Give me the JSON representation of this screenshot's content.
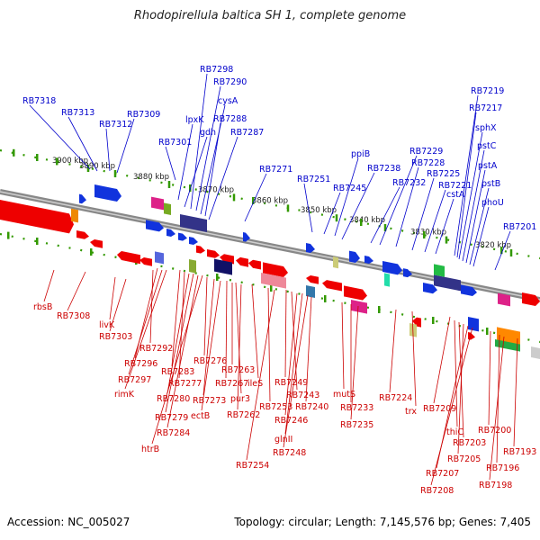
{
  "title": "Rhodopirellula baltica SH 1, complete genome",
  "footer": {
    "accession": "Accession: NC_005027",
    "info": "Topology: circular; Length: 7,145,576 bp; Genes: 7,405"
  },
  "colors": {
    "top_label": "#0000cc",
    "bottom_label": "#cc0000",
    "tick": "#339900",
    "backbone": "#888888"
  },
  "ticks": [
    {
      "label": "3900 kbp"
    },
    {
      "label": "3890 kbp"
    },
    {
      "label": "3880 kbp"
    },
    {
      "label": "3870 kbp"
    },
    {
      "label": "3860 kbp"
    },
    {
      "label": "3850 kbp"
    },
    {
      "label": "3840 kbp"
    },
    {
      "label": "3830 kbp"
    },
    {
      "label": "3820 kbp"
    }
  ],
  "top_labels": [
    "RB7318",
    "RB7313",
    "RB7312",
    "RB7309",
    "RB7301",
    "lpxK",
    "gdh",
    "RB7298",
    "RB7290",
    "cysA",
    "RB7288",
    "RB7287",
    "RB7271",
    "RB7251",
    "RB7245",
    "ppiB",
    "RB7238",
    "RB7232",
    "RB7229",
    "RB7228",
    "RB7225",
    "RB7221",
    "cstA",
    "RB7219",
    "RB7217",
    "sphX",
    "pstC",
    "pstA",
    "pstB",
    "phoU",
    "RB7201"
  ],
  "bottom_labels": [
    "rbsB",
    "RB7308",
    "livK",
    "RB7303",
    "RB7292",
    "RB7296",
    "RB7297",
    "rimK",
    "RB7283",
    "RB7277",
    "RB7280",
    "RB7279",
    "RB7284",
    "htrB",
    "RB7276",
    "RB7273",
    "ectB",
    "RB7267",
    "RB7263",
    "pur3",
    "RB7262",
    "ileS",
    "RB7253",
    "RB7254",
    "RB7249",
    "RB7243",
    "RB7246",
    "glnII",
    "RB7248",
    "RB7240",
    "mutS",
    "RB7233",
    "RB7235",
    "RB7224",
    "trx",
    "RB7209",
    "thiC",
    "RB7203",
    "RB7205",
    "RB7207",
    "RB7208",
    "RB7200",
    "RB7196",
    "RB7198",
    "RB7193"
  ]
}
